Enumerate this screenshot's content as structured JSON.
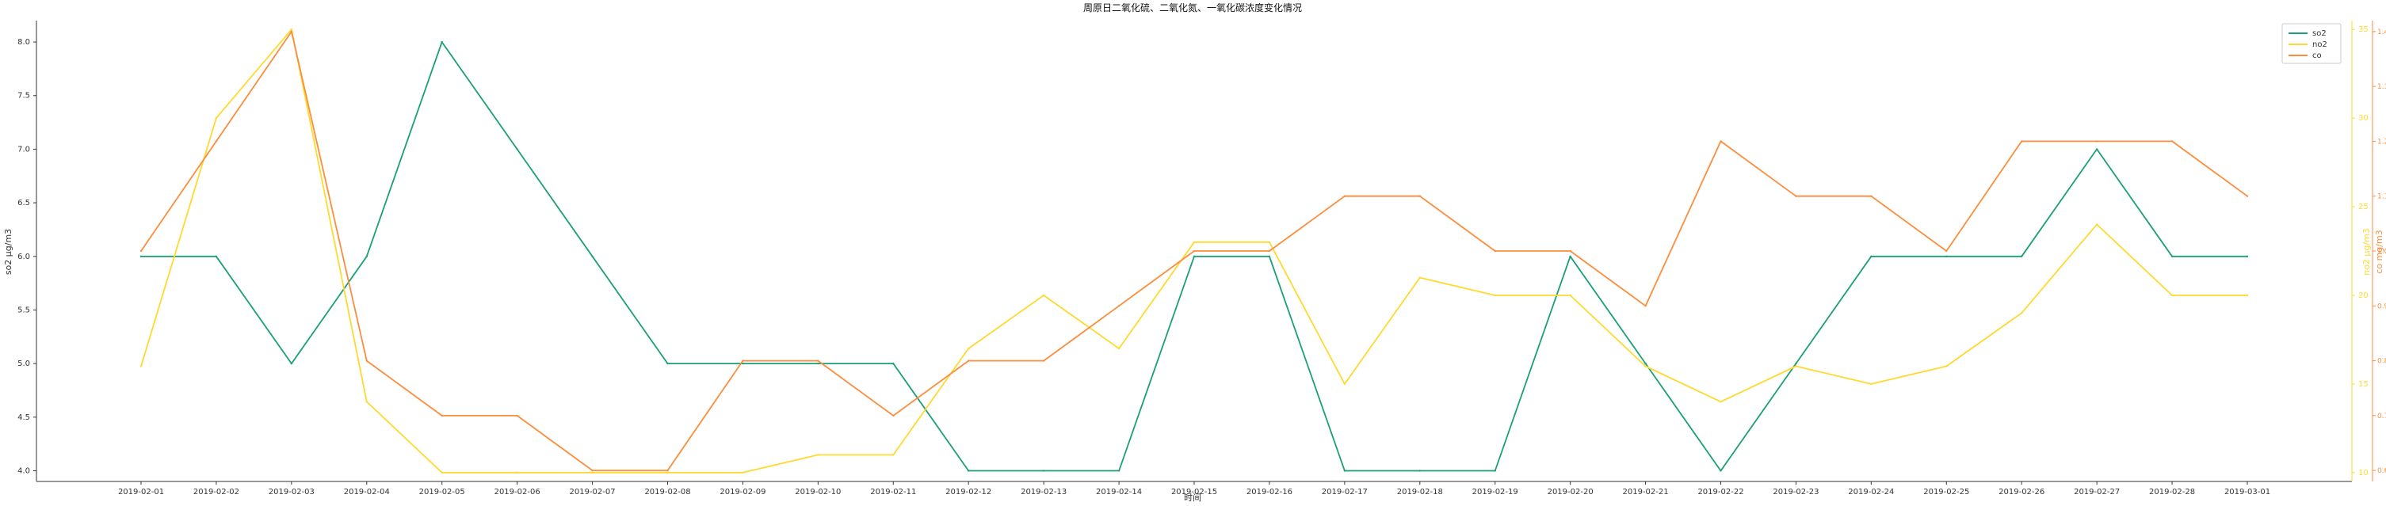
{
  "chart_data": {
    "type": "line",
    "title": "周原日二氧化硫、二氧化氮、一氧化碳浓度变化情况",
    "xlabel": "时间",
    "ylabel_left": "so2 μg/m3",
    "ylabel_right_inner": "no2 μg/m3",
    "ylabel_right_outer": "co mg/m3",
    "categories": [
      "2019-02-01",
      "2019-02-02",
      "2019-02-03",
      "2019-02-04",
      "2019-02-05",
      "2019-02-06",
      "2019-02-07",
      "2019-02-08",
      "2019-02-09",
      "2019-02-10",
      "2019-02-11",
      "2019-02-12",
      "2019-02-13",
      "2019-02-14",
      "2019-02-15",
      "2019-02-16",
      "2019-02-17",
      "2019-02-18",
      "2019-02-19",
      "2019-02-20",
      "2019-02-21",
      "2019-02-22",
      "2019-02-23",
      "2019-02-24",
      "2019-02-25",
      "2019-02-26",
      "2019-02-27",
      "2019-02-28",
      "2019-03-01"
    ],
    "axes": {
      "left": {
        "ylim": [
          3.9,
          8.2
        ],
        "ticks": [
          "4.0",
          "4.5",
          "5.0",
          "5.5",
          "6.0",
          "6.5",
          "7.0",
          "7.5",
          "8.0"
        ]
      },
      "right_inner": {
        "ylim": [
          9.5,
          35.5
        ],
        "ticks": [
          "10",
          "15",
          "20",
          "25",
          "30",
          "35"
        ]
      },
      "right_outer": {
        "ylim": [
          0.58,
          1.42
        ],
        "ticks": [
          "0.6",
          "0.7",
          "0.8",
          "0.9",
          "1.0",
          "1.1",
          "1.2",
          "1.3",
          "1.4"
        ]
      }
    },
    "series": [
      {
        "name": "so2",
        "axis": "left",
        "color": "#1a9f76",
        "values": [
          6,
          6,
          5,
          6,
          8,
          7,
          6,
          5,
          5,
          5,
          5,
          4,
          4,
          4,
          6,
          6,
          4,
          4,
          4,
          6,
          5,
          4,
          5,
          6,
          6,
          6,
          7,
          6,
          6
        ]
      },
      {
        "name": "no2",
        "axis": "right_inner",
        "color": "#ffd92f",
        "values": [
          16,
          30,
          35,
          14,
          10,
          10,
          10,
          10,
          10,
          11,
          11,
          17,
          20,
          17,
          23,
          23,
          15,
          21,
          20,
          20,
          16,
          14,
          16,
          15,
          16,
          19,
          24,
          20,
          20
        ]
      },
      {
        "name": "co",
        "axis": "right_outer",
        "color": "#fc8d3c",
        "values": [
          1.0,
          1.2,
          1.4,
          0.8,
          0.7,
          0.7,
          0.6,
          0.6,
          0.8,
          0.8,
          0.7,
          0.8,
          0.8,
          0.9,
          1.0,
          1.0,
          1.1,
          1.1,
          1.0,
          1.0,
          0.9,
          1.2,
          1.1,
          1.1,
          1.0,
          1.2,
          1.2,
          1.2,
          1.1
        ]
      }
    ],
    "legend": {
      "placement": "top-right",
      "entries": [
        "so2",
        "no2",
        "co"
      ]
    },
    "grid": false
  }
}
